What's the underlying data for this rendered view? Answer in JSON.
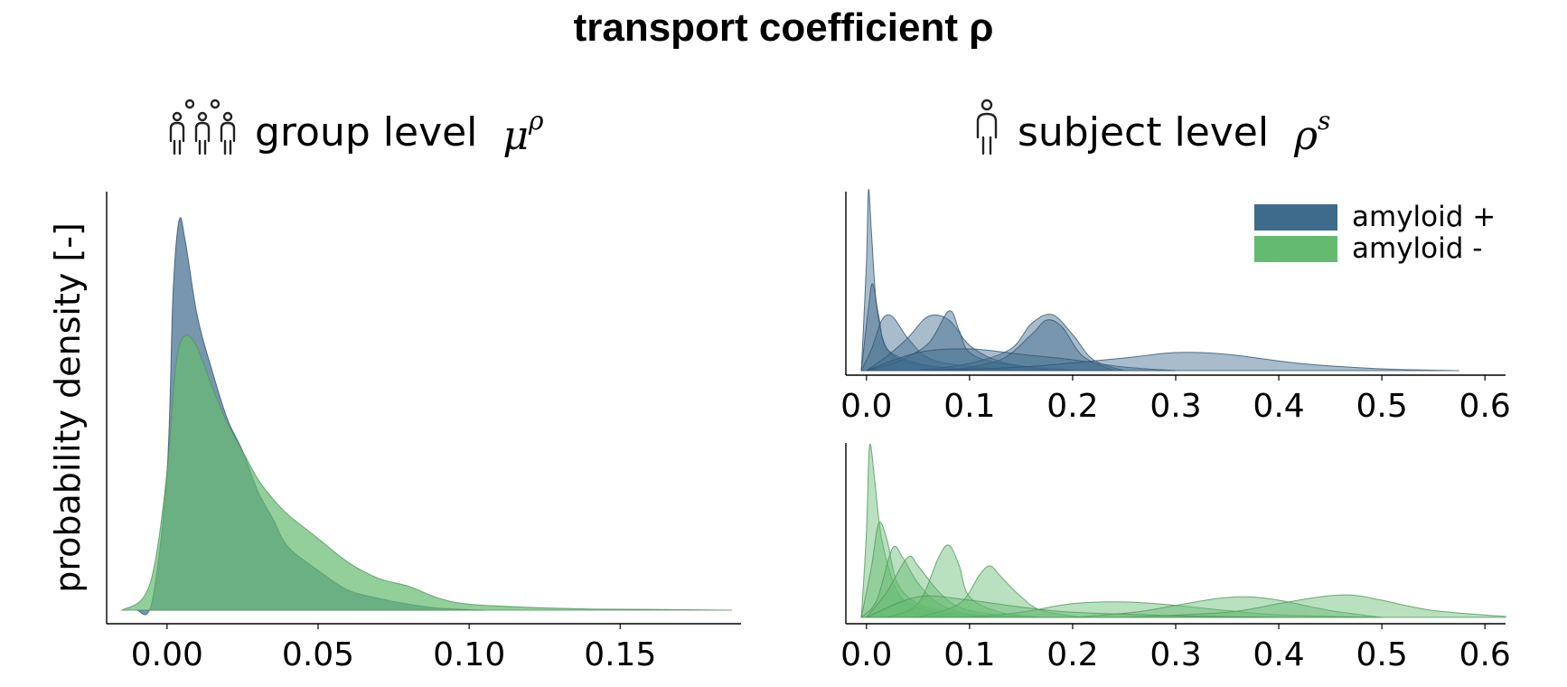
{
  "title": "transport coefficient ρ",
  "left_panel": {
    "label": "group level",
    "symbol": "μ",
    "symbol_sup": "ρ",
    "icon": "group-people-icon"
  },
  "right_panel": {
    "label": "subject level",
    "symbol": "ρ",
    "symbol_sup": "s",
    "icon": "person-icon"
  },
  "colors": {
    "amyloid_pos": "#3e6a8c",
    "amyloid_neg": "#64bb70"
  },
  "chart_data": [
    {
      "type": "area",
      "title": "group level μρ",
      "ylabel": "probability density [-]",
      "xlim": [
        -0.02,
        0.19
      ],
      "xticks": [
        "0.00",
        "0.05",
        "0.10",
        "0.15"
      ],
      "xtick_values": [
        0.0,
        0.05,
        0.1,
        0.15
      ],
      "series": [
        {
          "name": "amyloid +",
          "color": "#3e6a8c",
          "x": [
            -0.01,
            -0.005,
            0.0,
            0.002,
            0.004,
            0.006,
            0.01,
            0.015,
            0.02,
            0.025,
            0.03,
            0.035,
            0.04,
            0.05,
            0.06,
            0.07,
            0.08,
            0.09,
            0.105
          ],
          "y": [
            0.0,
            0.02,
            0.35,
            0.8,
            0.98,
            0.93,
            0.74,
            0.6,
            0.48,
            0.4,
            0.3,
            0.23,
            0.16,
            0.1,
            0.05,
            0.03,
            0.015,
            0.005,
            0.0
          ]
        },
        {
          "name": "amyloid -",
          "color": "#64bb70",
          "x": [
            -0.015,
            -0.008,
            -0.004,
            0.0,
            0.003,
            0.006,
            0.01,
            0.015,
            0.02,
            0.025,
            0.03,
            0.035,
            0.04,
            0.045,
            0.05,
            0.06,
            0.07,
            0.08,
            0.09,
            0.1,
            0.12,
            0.14,
            0.16,
            0.187
          ],
          "y": [
            0.0,
            0.03,
            0.12,
            0.35,
            0.62,
            0.69,
            0.66,
            0.56,
            0.47,
            0.4,
            0.33,
            0.28,
            0.24,
            0.21,
            0.18,
            0.12,
            0.08,
            0.06,
            0.03,
            0.015,
            0.007,
            0.003,
            0.002,
            0.0
          ]
        }
      ]
    },
    {
      "type": "area",
      "title": "subject level ρs — amyloid +",
      "xlim": [
        -0.02,
        0.62
      ],
      "xticks": [
        "0.0",
        "0.1",
        "0.2",
        "0.3",
        "0.4",
        "0.5",
        "0.6"
      ],
      "xtick_values": [
        0.0,
        0.1,
        0.2,
        0.3,
        0.4,
        0.5,
        0.6
      ],
      "legend": {
        "position": "top-right",
        "entries": [
          "amyloid +",
          "amyloid -"
        ]
      },
      "series": [
        {
          "name": "amyloid +",
          "color": "#3e6a8c",
          "x": [
            -0.005,
            0.0,
            0.002,
            0.005,
            0.01,
            0.02,
            0.04,
            0.07,
            0.1
          ],
          "y": [
            0,
            0.6,
            1.0,
            0.75,
            0.35,
            0.12,
            0.05,
            0.02,
            0
          ]
        },
        {
          "x": [
            -0.005,
            0.002,
            0.006,
            0.012,
            0.02,
            0.05,
            0.08,
            0.12
          ],
          "y": [
            0,
            0.35,
            0.48,
            0.3,
            0.12,
            0.04,
            0.015,
            0
          ]
        },
        {
          "x": [
            -0.005,
            0.005,
            0.015,
            0.025,
            0.04,
            0.06,
            0.09,
            0.15
          ],
          "y": [
            0,
            0.12,
            0.28,
            0.3,
            0.18,
            0.07,
            0.03,
            0
          ]
        },
        {
          "x": [
            0.0,
            0.02,
            0.04,
            0.06,
            0.08,
            0.1,
            0.13,
            0.18
          ],
          "y": [
            0,
            0.08,
            0.18,
            0.3,
            0.28,
            0.14,
            0.05,
            0
          ]
        },
        {
          "x": [
            0.0,
            0.03,
            0.06,
            0.08,
            0.09,
            0.1,
            0.13,
            0.2
          ],
          "y": [
            0,
            0.05,
            0.15,
            0.33,
            0.22,
            0.1,
            0.04,
            0
          ]
        },
        {
          "x": [
            0.05,
            0.1,
            0.14,
            0.16,
            0.18,
            0.2,
            0.22,
            0.25
          ],
          "y": [
            0,
            0.04,
            0.12,
            0.26,
            0.31,
            0.2,
            0.06,
            0
          ]
        },
        {
          "x": [
            0.08,
            0.13,
            0.16,
            0.175,
            0.19,
            0.21,
            0.24
          ],
          "y": [
            0,
            0.06,
            0.2,
            0.28,
            0.24,
            0.08,
            0
          ]
        },
        {
          "x": [
            0.0,
            0.05,
            0.1,
            0.15,
            0.2,
            0.25,
            0.3
          ],
          "y": [
            0,
            0.1,
            0.12,
            0.09,
            0.06,
            0.02,
            0
          ]
        },
        {
          "x": [
            0.05,
            0.15,
            0.25,
            0.3,
            0.35,
            0.42,
            0.5,
            0.575
          ],
          "y": [
            0,
            0.02,
            0.07,
            0.1,
            0.09,
            0.04,
            0.01,
            0
          ]
        }
      ]
    },
    {
      "type": "area",
      "title": "subject level ρs — amyloid -",
      "xlim": [
        -0.02,
        0.62
      ],
      "xticks": [
        "0.0",
        "0.1",
        "0.2",
        "0.3",
        "0.4",
        "0.5",
        "0.6"
      ],
      "xtick_values": [
        0.0,
        0.1,
        0.2,
        0.3,
        0.4,
        0.5,
        0.6
      ],
      "series": [
        {
          "name": "amyloid -",
          "color": "#64bb70",
          "x": [
            -0.005,
            0.0,
            0.003,
            0.008,
            0.015,
            0.03,
            0.05,
            0.08,
            0.12
          ],
          "y": [
            0,
            0.5,
            1.0,
            0.8,
            0.45,
            0.15,
            0.06,
            0.02,
            0
          ]
        },
        {
          "x": [
            -0.005,
            0.005,
            0.012,
            0.02,
            0.03,
            0.05,
            0.08,
            0.12
          ],
          "y": [
            0,
            0.3,
            0.55,
            0.45,
            0.2,
            0.08,
            0.03,
            0
          ]
        },
        {
          "x": [
            -0.005,
            0.01,
            0.025,
            0.035,
            0.05,
            0.07,
            0.1,
            0.15
          ],
          "y": [
            0,
            0.1,
            0.4,
            0.35,
            0.2,
            0.08,
            0.02,
            0
          ]
        },
        {
          "x": [
            0.0,
            0.02,
            0.04,
            0.05,
            0.07,
            0.09,
            0.12,
            0.16
          ],
          "y": [
            0,
            0.15,
            0.35,
            0.3,
            0.15,
            0.06,
            0.02,
            0
          ]
        },
        {
          "x": [
            0.02,
            0.05,
            0.07,
            0.08,
            0.09,
            0.1,
            0.13,
            0.17
          ],
          "y": [
            0,
            0.08,
            0.35,
            0.42,
            0.3,
            0.12,
            0.03,
            0
          ]
        },
        {
          "x": [
            0.05,
            0.09,
            0.11,
            0.12,
            0.13,
            0.15,
            0.17,
            0.21
          ],
          "y": [
            0,
            0.08,
            0.25,
            0.3,
            0.24,
            0.12,
            0.04,
            0
          ]
        },
        {
          "x": [
            0.1,
            0.15,
            0.2,
            0.25,
            0.3,
            0.35,
            0.4,
            0.5
          ],
          "y": [
            0,
            0.03,
            0.08,
            0.09,
            0.07,
            0.04,
            0.015,
            0
          ]
        },
        {
          "x": [
            0.2,
            0.26,
            0.3,
            0.34,
            0.37,
            0.4,
            0.45,
            0.5
          ],
          "y": [
            0,
            0.03,
            0.07,
            0.11,
            0.12,
            0.1,
            0.04,
            0
          ]
        },
        {
          "x": [
            0.25,
            0.35,
            0.4,
            0.44,
            0.47,
            0.5,
            0.55,
            0.62
          ],
          "y": [
            0,
            0.03,
            0.08,
            0.12,
            0.13,
            0.1,
            0.04,
            0.005
          ]
        },
        {
          "x": [
            0.0,
            0.05,
            0.1,
            0.15,
            0.2,
            0.3,
            0.4
          ],
          "y": [
            0,
            0.12,
            0.1,
            0.06,
            0.03,
            0.01,
            0
          ]
        }
      ]
    }
  ]
}
